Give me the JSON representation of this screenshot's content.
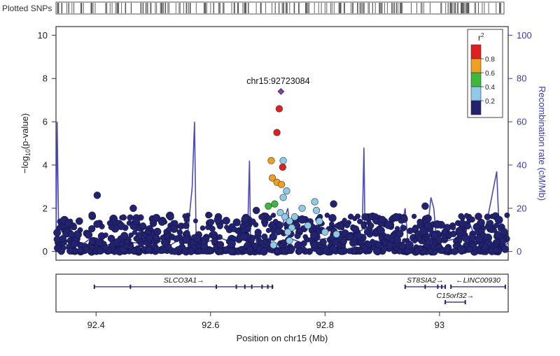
{
  "colors": {
    "recomb_line": "#4a4ab8",
    "axis_right": "#3b3bb0",
    "snp_low": "#22226e",
    "snp_02": "#8ecae8",
    "snp_04": "#3cb83c",
    "snp_06": "#f0a020",
    "snp_08": "#e02020",
    "lead": "#7a3fa0",
    "gene": "#22226e"
  },
  "chart_data": {
    "type": "scatter",
    "plotted_snps_label": "Plotted SNPs",
    "xlabel": "Position on chr15 (Mb)",
    "ylabel_left": "-log10(p-value)",
    "ylabel_right": "Recombination rate (cM/Mb)",
    "xlim": [
      92.33,
      93.12
    ],
    "ylim_left": [
      -0.4,
      10.4
    ],
    "ylim_right": [
      -4,
      104
    ],
    "x_ticks": [
      {
        "value": 92.4,
        "label": "92.4"
      },
      {
        "value": 92.6,
        "label": "92.6"
      },
      {
        "value": 92.8,
        "label": "92.8"
      },
      {
        "value": 93.0,
        "label": "93"
      }
    ],
    "y_ticks_left": [
      {
        "value": 0,
        "label": "0"
      },
      {
        "value": 2,
        "label": "2"
      },
      {
        "value": 4,
        "label": "4"
      },
      {
        "value": 6,
        "label": "6"
      },
      {
        "value": 8,
        "label": "8"
      },
      {
        "value": 10,
        "label": "10"
      }
    ],
    "y_ticks_right": [
      {
        "value": 0,
        "label": "0"
      },
      {
        "value": 20,
        "label": "20"
      },
      {
        "value": 40,
        "label": "40"
      },
      {
        "value": 60,
        "label": "60"
      },
      {
        "value": 80,
        "label": "80"
      },
      {
        "value": 100,
        "label": "100"
      }
    ],
    "legend": {
      "title": "r2",
      "placement": "top-right",
      "bins": [
        {
          "label": "0.8",
          "color": "#e02020"
        },
        {
          "label": "0.6",
          "color": "#f0a020"
        },
        {
          "label": "0.4",
          "color": "#3cb83c"
        },
        {
          "label": "0.2",
          "color": "#8ecae8"
        },
        {
          "label": "",
          "color": "#22226e"
        }
      ]
    },
    "lead_snp": {
      "label": "chr15:92723084",
      "x": 92.723,
      "y": 7.4
    },
    "highlighted_snps": [
      {
        "x": 92.72,
        "y": 6.6,
        "r2": 0.9
      },
      {
        "x": 92.716,
        "y": 5.5,
        "r2": 0.9
      },
      {
        "x": 92.727,
        "y": 4.2,
        "r2": 0.3
      },
      {
        "x": 92.726,
        "y": 3.9,
        "r2": 0.9
      },
      {
        "x": 92.706,
        "y": 4.2,
        "r2": 0.7
      },
      {
        "x": 92.708,
        "y": 3.4,
        "r2": 0.7
      },
      {
        "x": 92.716,
        "y": 3.2,
        "r2": 0.7
      },
      {
        "x": 92.724,
        "y": 3.1,
        "r2": 0.7
      },
      {
        "x": 92.701,
        "y": 2.1,
        "r2": 0.5
      },
      {
        "x": 92.712,
        "y": 2.2,
        "r2": 0.5
      },
      {
        "x": 92.733,
        "y": 2.8,
        "r2": 0.3
      },
      {
        "x": 92.727,
        "y": 2.5,
        "r2": 0.3
      },
      {
        "x": 92.722,
        "y": 1.8,
        "r2": 0.3
      },
      {
        "x": 92.73,
        "y": 1.6,
        "r2": 0.3
      },
      {
        "x": 92.738,
        "y": 1.4,
        "r2": 0.3
      },
      {
        "x": 92.742,
        "y": 1.1,
        "r2": 0.3
      },
      {
        "x": 92.735,
        "y": 0.9,
        "r2": 0.3
      },
      {
        "x": 92.747,
        "y": 1.6,
        "r2": 0.3
      },
      {
        "x": 92.76,
        "y": 2.0,
        "r2": 0.3
      },
      {
        "x": 92.782,
        "y": 2.3,
        "r2": 0.3
      },
      {
        "x": 92.785,
        "y": 1.9,
        "r2": 0.3
      },
      {
        "x": 92.79,
        "y": 1.4,
        "r2": 0.3
      },
      {
        "x": 92.77,
        "y": 1.2,
        "r2": 0.3
      },
      {
        "x": 92.8,
        "y": 0.9,
        "r2": 0.3
      },
      {
        "x": 92.71,
        "y": 0.3,
        "r2": 0.3
      },
      {
        "x": 92.738,
        "y": 0.5,
        "r2": 0.3
      },
      {
        "x": 92.82,
        "y": 0.8,
        "r2": 0.3
      }
    ],
    "background_snps": {
      "r2": "< 0.2",
      "y_range": [
        0,
        2.6
      ],
      "notable": [
        {
          "x": 92.402,
          "y": 2.6
        },
        {
          "x": 92.465,
          "y": 2.0
        },
        {
          "x": 92.47,
          "y": 1.4
        },
        {
          "x": 92.5,
          "y": 1.3
        },
        {
          "x": 92.53,
          "y": 1.6
        },
        {
          "x": 92.66,
          "y": 1.5
        },
        {
          "x": 92.68,
          "y": 1.9
        },
        {
          "x": 92.815,
          "y": 2.2
        },
        {
          "x": 92.87,
          "y": 1.6
        },
        {
          "x": 92.975,
          "y": 2.1
        },
        {
          "x": 92.98,
          "y": 1.2
        },
        {
          "x": 93.04,
          "y": 1.3
        }
      ]
    },
    "recombination_rate": [
      [
        92.33,
        5
      ],
      [
        92.332,
        60
      ],
      [
        92.335,
        2
      ],
      [
        92.34,
        4
      ],
      [
        92.345,
        15
      ],
      [
        92.348,
        3
      ],
      [
        92.38,
        4
      ],
      [
        92.39,
        6
      ],
      [
        92.42,
        3
      ],
      [
        92.44,
        5
      ],
      [
        92.47,
        4
      ],
      [
        92.5,
        6
      ],
      [
        92.53,
        3
      ],
      [
        92.56,
        8
      ],
      [
        92.568,
        30
      ],
      [
        92.572,
        60
      ],
      [
        92.575,
        3
      ],
      [
        92.6,
        5
      ],
      [
        92.62,
        6
      ],
      [
        92.64,
        4
      ],
      [
        92.665,
        10
      ],
      [
        92.668,
        42
      ],
      [
        92.67,
        3
      ],
      [
        92.7,
        6
      ],
      [
        92.72,
        8
      ],
      [
        92.735,
        20
      ],
      [
        92.74,
        6
      ],
      [
        92.76,
        4
      ],
      [
        92.8,
        6
      ],
      [
        92.83,
        5
      ],
      [
        92.865,
        10
      ],
      [
        92.868,
        48
      ],
      [
        92.87,
        4
      ],
      [
        92.9,
        5
      ],
      [
        92.93,
        6
      ],
      [
        92.94,
        20
      ],
      [
        92.945,
        4
      ],
      [
        92.97,
        8
      ],
      [
        92.98,
        12
      ],
      [
        92.985,
        25
      ],
      [
        92.99,
        20
      ],
      [
        92.995,
        4
      ],
      [
        93.03,
        6
      ],
      [
        93.05,
        15
      ],
      [
        93.06,
        8
      ],
      [
        93.08,
        10
      ],
      [
        93.1,
        37
      ],
      [
        93.105,
        5
      ],
      [
        93.115,
        3
      ],
      [
        93.12,
        4
      ]
    ],
    "genes": [
      {
        "name": "SLCO3A1",
        "label": "SLCO3A1→",
        "start": 92.397,
        "end": 92.71,
        "row": 0,
        "exons": [
          92.397,
          92.46,
          92.61,
          92.645,
          92.66,
          92.672,
          92.69,
          92.7,
          92.708
        ]
      },
      {
        "name": "ST8SIA2",
        "label": "ST8SIA2→",
        "start": 92.94,
        "end": 93.01,
        "row": 0,
        "exons": [
          92.94,
          92.975,
          92.997,
          93.004,
          93.01
        ]
      },
      {
        "name": "LINC00930",
        "label": "←LINC00930",
        "start": 93.02,
        "end": 93.115,
        "row": 0,
        "exons": [
          93.02,
          93.115
        ]
      },
      {
        "name": "C15orf32",
        "label": "C15orf32→",
        "start": 93.01,
        "end": 93.045,
        "row": 1,
        "exons": [
          93.01,
          93.045
        ]
      }
    ]
  }
}
